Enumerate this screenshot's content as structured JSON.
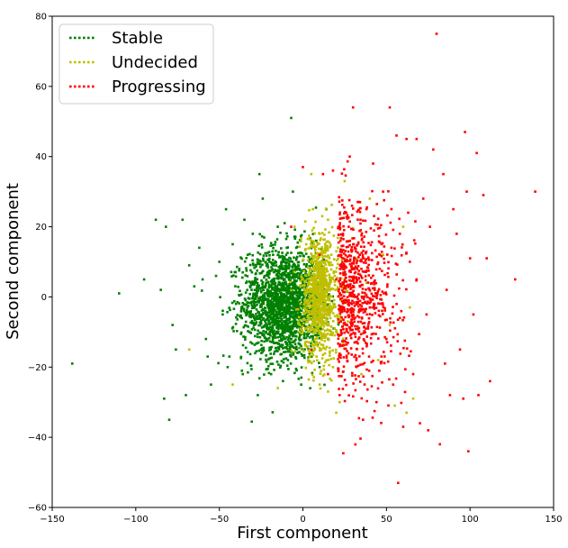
{
  "chart_data": {
    "type": "scatter",
    "title": "",
    "xlabel": "First component",
    "ylabel": "Second component",
    "xlim": [
      -150,
      150
    ],
    "ylim": [
      -60,
      80
    ],
    "xticks": [
      -150,
      -100,
      -50,
      0,
      50,
      100,
      150
    ],
    "yticks": [
      -60,
      -40,
      -20,
      0,
      20,
      40,
      60,
      80
    ],
    "grid": false,
    "legend_position": "upper-left",
    "series": [
      {
        "name": "Stable",
        "color": "#008000",
        "cluster_center": [
          -12,
          -2
        ],
        "points": [
          [
            -138,
            -19
          ],
          [
            -110,
            1
          ],
          [
            -95,
            5
          ],
          [
            -88,
            22
          ],
          [
            -85,
            2
          ],
          [
            -83,
            -29
          ],
          [
            -82,
            20
          ],
          [
            -80,
            -35
          ],
          [
            -78,
            -8
          ],
          [
            -76,
            -15
          ],
          [
            -72,
            22
          ],
          [
            -70,
            -28
          ],
          [
            -68,
            9
          ],
          [
            -65,
            3
          ],
          [
            -62,
            14
          ],
          [
            -58,
            -12
          ],
          [
            -55,
            -25
          ],
          [
            -52,
            6
          ],
          [
            -50,
            10
          ],
          [
            -48,
            -5
          ],
          [
            -46,
            25
          ],
          [
            -45,
            -20
          ],
          [
            -42,
            15
          ],
          [
            -40,
            -2
          ],
          [
            -38,
            8
          ],
          [
            -36,
            -22
          ],
          [
            -35,
            22
          ],
          [
            -33,
            12
          ],
          [
            -32,
            -10
          ],
          [
            -30,
            18
          ],
          [
            -28,
            5
          ],
          [
            -27,
            -28
          ],
          [
            -26,
            35
          ],
          [
            -25,
            -15
          ],
          [
            -24,
            28
          ],
          [
            -22,
            -5
          ],
          [
            -20,
            10
          ],
          [
            -18,
            -12
          ],
          [
            -17,
            2
          ],
          [
            -15,
            20
          ],
          [
            -14,
            -8
          ],
          [
            -12,
            4
          ],
          [
            -11,
            -3
          ],
          [
            -10,
            12
          ],
          [
            -9,
            -18
          ],
          [
            -8,
            6
          ],
          [
            -7,
            51
          ],
          [
            -6,
            30
          ],
          [
            -5,
            -10
          ],
          [
            -4,
            14
          ],
          [
            -3,
            -6
          ],
          [
            -2,
            8
          ],
          [
            -1,
            -14
          ],
          [
            0,
            3
          ],
          [
            2,
            -4
          ],
          [
            4,
            10
          ],
          [
            6,
            -2
          ],
          [
            8,
            16
          ],
          [
            10,
            -20
          ],
          [
            12,
            6
          ],
          [
            14,
            25
          ],
          [
            15,
            -12
          ],
          [
            -19,
            -22
          ],
          [
            -23,
            1
          ],
          [
            -29,
            -3
          ],
          [
            -34,
            4
          ],
          [
            -21,
            6
          ],
          [
            -16,
            -2
          ],
          [
            -13,
            0
          ],
          [
            -9,
            2
          ],
          [
            -6,
            -1
          ],
          [
            -3,
            1
          ],
          [
            -44,
            -17
          ],
          [
            -57,
            -17
          ],
          [
            -60,
            5
          ],
          [
            -24,
            -2
          ],
          [
            -19,
            3
          ],
          [
            -15,
            -6
          ],
          [
            -11,
            7
          ],
          [
            -8,
            -5
          ]
        ]
      },
      {
        "name": "Undecided",
        "color": "#bfbf00",
        "cluster_center": [
          10,
          0
        ],
        "points": [
          [
            -68,
            -15
          ],
          [
            -42,
            -25
          ],
          [
            -15,
            -26
          ],
          [
            -5,
            20
          ],
          [
            -2,
            -10
          ],
          [
            0,
            5
          ],
          [
            2,
            15
          ],
          [
            3,
            -18
          ],
          [
            5,
            0
          ],
          [
            6,
            25
          ],
          [
            7,
            -8
          ],
          [
            8,
            10
          ],
          [
            9,
            -3
          ],
          [
            10,
            18
          ],
          [
            11,
            -15
          ],
          [
            12,
            3
          ],
          [
            13,
            8
          ],
          [
            14,
            -6
          ],
          [
            15,
            22
          ],
          [
            16,
            -2
          ],
          [
            17,
            12
          ],
          [
            18,
            -20
          ],
          [
            19,
            6
          ],
          [
            20,
            -10
          ],
          [
            21,
            14
          ],
          [
            22,
            -4
          ],
          [
            23,
            9
          ],
          [
            24,
            -13
          ],
          [
            25,
            33
          ],
          [
            26,
            2
          ],
          [
            27,
            -7
          ],
          [
            28,
            16
          ],
          [
            20,
            -33
          ],
          [
            22,
            -30
          ],
          [
            15,
            -27
          ],
          [
            10,
            -25
          ],
          [
            5,
            35
          ],
          [
            30,
            -5
          ],
          [
            32,
            11
          ],
          [
            35,
            -22
          ],
          [
            38,
            4
          ],
          [
            40,
            28
          ],
          [
            45,
            -18
          ],
          [
            48,
            12
          ],
          [
            52,
            -8
          ],
          [
            55,
            -31
          ],
          [
            60,
            20
          ],
          [
            62,
            -33
          ],
          [
            64,
            -3
          ],
          [
            66,
            -29
          ],
          [
            1,
            -1
          ],
          [
            4,
            2
          ],
          [
            7,
            1
          ],
          [
            9,
            6
          ],
          [
            11,
            0
          ],
          [
            13,
            -2
          ]
        ]
      },
      {
        "name": "Progressing",
        "color": "#ff0000",
        "cluster_center": [
          25,
          0
        ],
        "points": [
          [
            -7,
            20
          ],
          [
            0,
            37
          ],
          [
            5,
            -15
          ],
          [
            10,
            12
          ],
          [
            12,
            35
          ],
          [
            15,
            -22
          ],
          [
            18,
            36
          ],
          [
            20,
            5
          ],
          [
            22,
            -28
          ],
          [
            24,
            18
          ],
          [
            26,
            -8
          ],
          [
            28,
            40
          ],
          [
            30,
            54
          ],
          [
            32,
            -18
          ],
          [
            34,
            12
          ],
          [
            36,
            -35
          ],
          [
            38,
            25
          ],
          [
            40,
            -3
          ],
          [
            42,
            38
          ],
          [
            44,
            -30
          ],
          [
            46,
            8
          ],
          [
            48,
            30
          ],
          [
            50,
            -12
          ],
          [
            52,
            54
          ],
          [
            54,
            -25
          ],
          [
            56,
            46
          ],
          [
            58,
            18
          ],
          [
            60,
            -37
          ],
          [
            62,
            45
          ],
          [
            64,
            10
          ],
          [
            66,
            -22
          ],
          [
            68,
            45
          ],
          [
            70,
            -36
          ],
          [
            72,
            28
          ],
          [
            74,
            -5
          ],
          [
            76,
            20
          ],
          [
            78,
            42
          ],
          [
            80,
            75
          ],
          [
            82,
            -42
          ],
          [
            84,
            35
          ],
          [
            86,
            2
          ],
          [
            88,
            -28
          ],
          [
            90,
            25
          ],
          [
            92,
            18
          ],
          [
            94,
            -15
          ],
          [
            96,
            -29
          ],
          [
            97,
            47
          ],
          [
            98,
            30
          ],
          [
            99,
            -44
          ],
          [
            100,
            11
          ],
          [
            102,
            -5
          ],
          [
            104,
            41
          ],
          [
            105,
            -28
          ],
          [
            108,
            29
          ],
          [
            110,
            11
          ],
          [
            112,
            -24
          ],
          [
            127,
            5
          ],
          [
            139,
            30
          ],
          [
            57,
            -53
          ],
          [
            85,
            -19
          ],
          [
            75,
            -38
          ],
          [
            68,
            5
          ],
          [
            63,
            24
          ],
          [
            58,
            -6
          ],
          [
            53,
            14
          ],
          [
            47,
            -17
          ],
          [
            43,
            2
          ],
          [
            39,
            -9
          ],
          [
            35,
            8
          ],
          [
            31,
            0
          ],
          [
            27,
            -4
          ],
          [
            23,
            3
          ]
        ]
      }
    ]
  }
}
